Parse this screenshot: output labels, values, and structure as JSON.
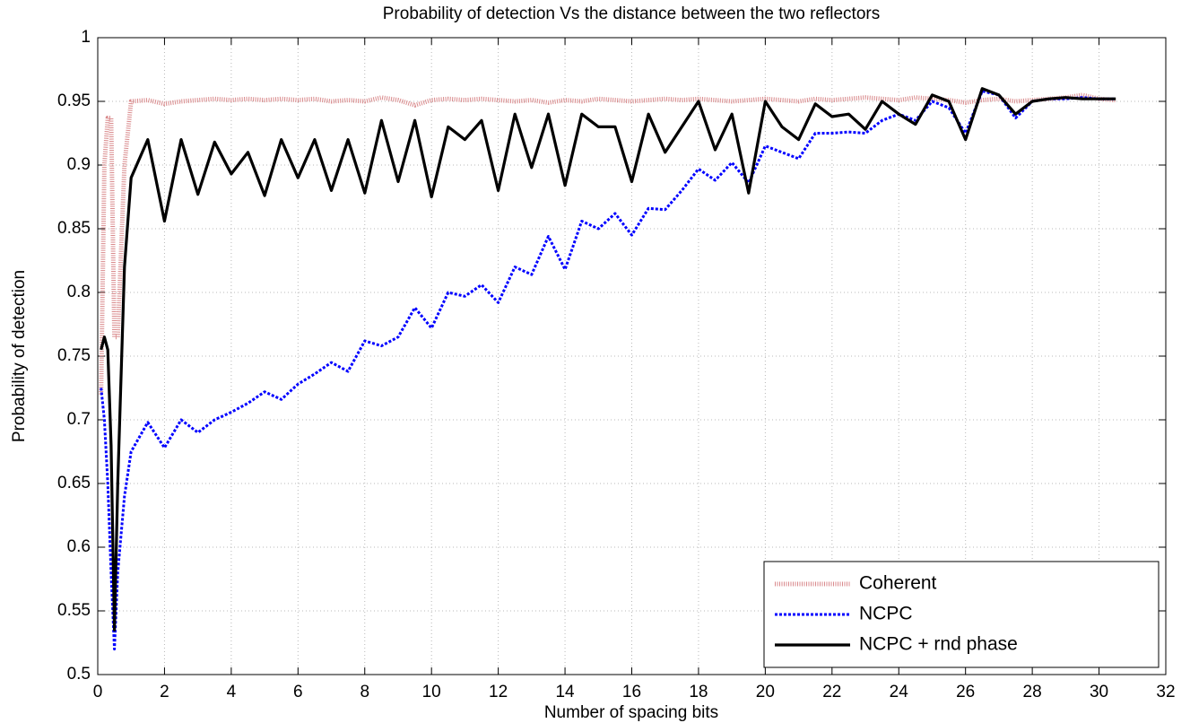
{
  "chart_data": {
    "type": "line",
    "title": "Probability of detection Vs the distance between the two reflectors",
    "xlabel": "Number of spacing bits",
    "ylabel": "Probability of detection",
    "x": [
      0.1,
      0.2,
      0.3,
      0.4,
      0.5,
      0.6,
      0.8,
      1,
      1.5,
      2,
      2.5,
      3,
      3.5,
      4,
      4.5,
      5,
      5.5,
      6,
      6.5,
      7,
      7.5,
      8,
      8.5,
      9,
      9.5,
      10,
      10.5,
      11,
      11.5,
      12,
      12.5,
      13,
      13.5,
      14,
      14.5,
      15,
      15.5,
      16,
      16.5,
      17,
      17.5,
      18,
      18.5,
      19,
      19.5,
      20,
      20.5,
      21,
      21.5,
      22,
      22.5,
      23,
      23.5,
      24,
      24.5,
      25,
      25.5,
      26,
      26.5,
      27,
      27.5,
      28,
      28.5,
      29,
      29.5,
      30,
      30.5
    ],
    "series": [
      {
        "name": "Coherent",
        "color": "#d98a8c",
        "values": [
          0.72,
          0.9,
          0.937,
          0.937,
          0.765,
          0.765,
          0.9,
          0.95,
          0.951,
          0.948,
          0.95,
          0.951,
          0.952,
          0.951,
          0.952,
          0.951,
          0.952,
          0.951,
          0.952,
          0.95,
          0.951,
          0.95,
          0.953,
          0.951,
          0.947,
          0.951,
          0.952,
          0.951,
          0.952,
          0.951,
          0.95,
          0.951,
          0.949,
          0.951,
          0.95,
          0.952,
          0.951,
          0.95,
          0.951,
          0.952,
          0.951,
          0.952,
          0.951,
          0.95,
          0.951,
          0.952,
          0.951,
          0.95,
          0.952,
          0.951,
          0.952,
          0.953,
          0.952,
          0.951,
          0.953,
          0.952,
          0.951,
          0.949,
          0.951,
          0.952,
          0.95,
          0.951,
          0.952,
          0.953,
          0.955,
          0.952,
          0.951
        ]
      },
      {
        "name": "NCPC",
        "color": "#0000ff",
        "values": [
          0.725,
          0.7,
          0.65,
          0.58,
          0.52,
          0.58,
          0.64,
          0.675,
          0.698,
          0.678,
          0.7,
          0.69,
          0.7,
          0.706,
          0.713,
          0.722,
          0.716,
          0.728,
          0.736,
          0.745,
          0.738,
          0.762,
          0.758,
          0.765,
          0.788,
          0.772,
          0.8,
          0.797,
          0.806,
          0.792,
          0.82,
          0.814,
          0.844,
          0.818,
          0.856,
          0.85,
          0.862,
          0.845,
          0.866,
          0.865,
          0.88,
          0.897,
          0.888,
          0.902,
          0.886,
          0.915,
          0.91,
          0.905,
          0.925,
          0.925,
          0.926,
          0.925,
          0.935,
          0.94,
          0.935,
          0.95,
          0.945,
          0.925,
          0.958,
          0.955,
          0.937,
          0.95,
          0.952,
          0.952,
          0.953,
          0.952,
          0.952
        ]
      },
      {
        "name": "NCPC + rnd phase",
        "color": "#000000",
        "values": [
          0.755,
          0.765,
          0.755,
          0.68,
          0.535,
          0.65,
          0.82,
          0.89,
          0.92,
          0.856,
          0.92,
          0.877,
          0.918,
          0.893,
          0.91,
          0.876,
          0.92,
          0.89,
          0.92,
          0.88,
          0.92,
          0.878,
          0.935,
          0.887,
          0.935,
          0.875,
          0.93,
          0.92,
          0.935,
          0.88,
          0.94,
          0.898,
          0.94,
          0.884,
          0.94,
          0.93,
          0.93,
          0.887,
          0.94,
          0.91,
          0.93,
          0.95,
          0.912,
          0.94,
          0.878,
          0.95,
          0.93,
          0.92,
          0.948,
          0.938,
          0.94,
          0.928,
          0.95,
          0.94,
          0.932,
          0.955,
          0.95,
          0.92,
          0.96,
          0.955,
          0.94,
          0.95,
          0.952,
          0.953,
          0.952,
          0.952,
          0.952
        ]
      }
    ],
    "xlim": [
      0,
      32
    ],
    "xticks": [
      0,
      2,
      4,
      6,
      8,
      10,
      12,
      14,
      16,
      18,
      20,
      22,
      24,
      26,
      28,
      30,
      32
    ],
    "ylim": [
      0.5,
      1
    ],
    "yticks": [
      0.5,
      0.55,
      0.6,
      0.65,
      0.7,
      0.75,
      0.8,
      0.85,
      0.9,
      0.95,
      1
    ],
    "grid": true,
    "legend": "lower right"
  }
}
